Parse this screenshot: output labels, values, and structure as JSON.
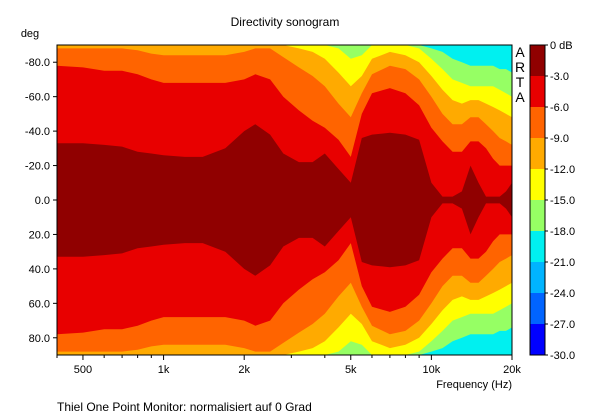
{
  "chart_data": {
    "type": "heatmap",
    "title": "Directivity sonogram",
    "ylabel": "deg",
    "xlabel": "Frequency (Hz)",
    "x_scale": "log",
    "xlim": [
      400,
      20000
    ],
    "ylim": [
      -90,
      90
    ],
    "x_ticks": [
      {
        "value": 500,
        "label": "500"
      },
      {
        "value": 1000,
        "label": "1k"
      },
      {
        "value": 2000,
        "label": "2k"
      },
      {
        "value": 5000,
        "label": "5k"
      },
      {
        "value": 10000,
        "label": "10k"
      },
      {
        "value": 20000,
        "label": "20k"
      }
    ],
    "y_ticks": [
      {
        "value": -80,
        "label": "-80.0"
      },
      {
        "value": -60,
        "label": "-60.0"
      },
      {
        "value": -40,
        "label": "-40.0"
      },
      {
        "value": -20,
        "label": "-20.0"
      },
      {
        "value": 0,
        "label": "0.0"
      },
      {
        "value": 20,
        "label": "20.0"
      },
      {
        "value": 40,
        "label": "40.0"
      },
      {
        "value": 60,
        "label": "60.0"
      },
      {
        "value": 80,
        "label": "80.0"
      }
    ],
    "color_scale": {
      "unit": "dB",
      "labels": [
        "0 dB",
        "-3.0",
        "-6.0",
        "-9.0",
        "-12.0",
        "-15.0",
        "-18.0",
        "-21.0",
        "-24.0",
        "-27.0",
        "-30.0"
      ],
      "levels": [
        {
          "min": -3,
          "max": 0,
          "color": "#900000"
        },
        {
          "min": -6,
          "max": -3,
          "color": "#e80000"
        },
        {
          "min": -9,
          "max": -6,
          "color": "#ff6400"
        },
        {
          "min": -12,
          "max": -9,
          "color": "#ffaa00"
        },
        {
          "min": -15,
          "max": -12,
          "color": "#ffff00"
        },
        {
          "min": -18,
          "max": -15,
          "color": "#96ff64"
        },
        {
          "min": -21,
          "max": -18,
          "color": "#00f0f0"
        },
        {
          "min": -24,
          "max": -21,
          "color": "#00b4ff"
        },
        {
          "min": -27,
          "max": -24,
          "color": "#0064ff"
        },
        {
          "min": -30,
          "max": -27,
          "color": "#0000ff"
        }
      ]
    },
    "contours": {
      "description_levels": [
        "-3",
        "-6",
        "-9",
        "-12",
        "-15",
        "-18"
      ],
      "frequencies": [
        400,
        500,
        600,
        700,
        800,
        900,
        1000,
        1200,
        1400,
        1700,
        2000,
        2200,
        2500,
        2800,
        3200,
        3600,
        4000,
        4500,
        5000,
        5500,
        6000,
        7000,
        8000,
        9000,
        10000,
        11000,
        12000,
        13000,
        14000,
        15000,
        16000,
        17000,
        18000,
        19000,
        20000
      ],
      "minus3": [
        33,
        33,
        32,
        31,
        28,
        27,
        26,
        25,
        25,
        30,
        40,
        44,
        38,
        27,
        22,
        22,
        27,
        18,
        10,
        36,
        38,
        39,
        38,
        35,
        10,
        2,
        2,
        5,
        20,
        10,
        2,
        2,
        2,
        5,
        10
      ],
      "minus6": [
        78,
        77,
        75,
        75,
        73,
        70,
        68,
        68,
        68,
        68,
        70,
        73,
        70,
        60,
        52,
        46,
        42,
        35,
        25,
        50,
        62,
        65,
        62,
        55,
        42,
        34,
        28,
        28,
        34,
        34,
        30,
        24,
        20,
        20,
        20
      ],
      "minus9": [
        88,
        88,
        88,
        88,
        87,
        85,
        84,
        84,
        84,
        84,
        86,
        88,
        88,
        83,
        77,
        72,
        66,
        56,
        48,
        62,
        73,
        78,
        76,
        70,
        60,
        50,
        44,
        44,
        48,
        48,
        44,
        40,
        36,
        34,
        32
      ],
      "minus12": [
        90,
        90,
        90,
        90,
        90,
        90,
        90,
        90,
        90,
        90,
        90,
        90,
        90,
        90,
        88,
        86,
        82,
        74,
        66,
        72,
        82,
        86,
        84,
        80,
        72,
        64,
        58,
        56,
        58,
        58,
        56,
        54,
        52,
        50,
        48
      ],
      "minus15": [
        90,
        90,
        90,
        90,
        90,
        90,
        90,
        90,
        90,
        90,
        90,
        90,
        90,
        90,
        90,
        90,
        90,
        88,
        82,
        84,
        90,
        90,
        90,
        88,
        82,
        76,
        70,
        68,
        66,
        66,
        66,
        66,
        64,
        62,
        60
      ],
      "minus18": [
        90,
        90,
        90,
        90,
        90,
        90,
        90,
        90,
        90,
        90,
        90,
        90,
        90,
        90,
        90,
        90,
        90,
        90,
        90,
        90,
        90,
        90,
        90,
        90,
        88,
        86,
        82,
        80,
        78,
        78,
        78,
        78,
        76,
        76,
        74
      ]
    }
  },
  "watermark": "ARTA",
  "footer": "Thiel One Point Monitor: normalisiert auf 0 Grad"
}
